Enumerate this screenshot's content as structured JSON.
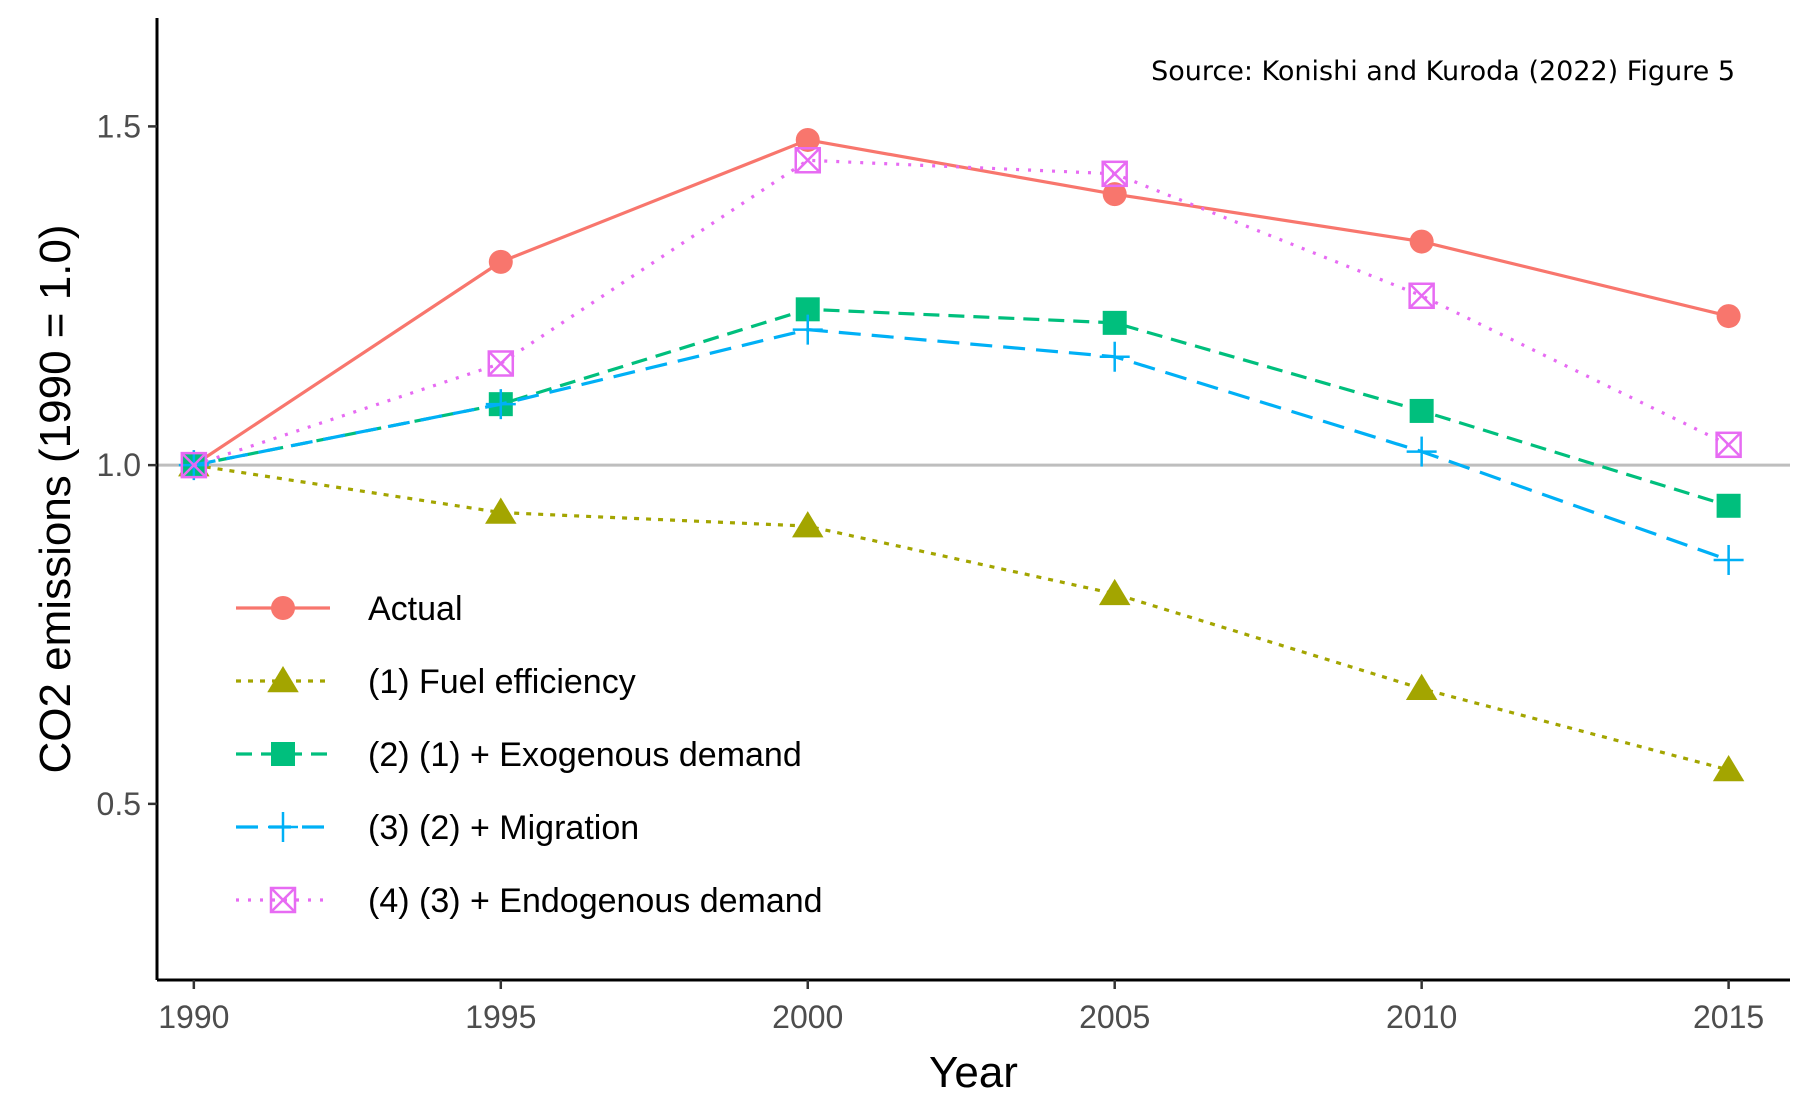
{
  "chart_data": {
    "type": "line",
    "x": [
      1990,
      1995,
      2000,
      2005,
      2010,
      2015
    ],
    "xlabel": "Year",
    "ylabel": "CO2 emissions (1990 = 1.0)",
    "xlim": [
      1989.4,
      2016.0
    ],
    "ylim": [
      0.24,
      1.66
    ],
    "x_ticks": [
      "1990",
      "1995",
      "2000",
      "2005",
      "2010",
      "2015"
    ],
    "y_ticks": [
      "0.5",
      "1.0",
      "1.5"
    ],
    "reference_line": 1.0,
    "annotation": "Source: Konishi and Kuroda (2022) Figure 5",
    "legend_position": "bottom-left",
    "grid": false,
    "series": [
      {
        "name": "Actual",
        "values": [
          1.0,
          1.3,
          1.48,
          1.4,
          1.33,
          1.22
        ],
        "color": "#F8766D",
        "dash": "solid",
        "marker": "circle"
      },
      {
        "name": "(1) Fuel efficiency",
        "values": [
          1.0,
          0.93,
          0.91,
          0.81,
          0.67,
          0.55
        ],
        "color": "#A3A500",
        "dash": "dotted",
        "marker": "triangle"
      },
      {
        "name": "(2) (1) + Exogenous demand",
        "values": [
          1.0,
          1.09,
          1.23,
          1.21,
          1.08,
          0.94
        ],
        "color": "#00BF7D",
        "dash": "dashed",
        "marker": "square"
      },
      {
        "name": "(3) (2) + Migration",
        "values": [
          1.0,
          1.09,
          1.2,
          1.16,
          1.02,
          0.86
        ],
        "color": "#00B0F6",
        "dash": "longdash",
        "marker": "plus"
      },
      {
        "name": "(4) (3) + Endogenous demand",
        "values": [
          1.0,
          1.15,
          1.45,
          1.43,
          1.25,
          1.03
        ],
        "color": "#E76BF3",
        "dash": "dotted2",
        "marker": "boxcross"
      }
    ]
  }
}
